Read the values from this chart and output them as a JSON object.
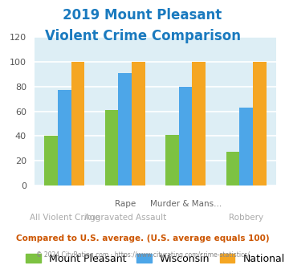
{
  "title_line1": "2019 Mount Pleasant",
  "title_line2": "Violent Crime Comparison",
  "title_color": "#1a7abf",
  "xlabel_top": [
    "",
    "Rape",
    "Murder & Mans...",
    ""
  ],
  "xlabel_bottom": [
    "All Violent Crime",
    "Aggravated Assault",
    "",
    "Robbery"
  ],
  "groups": [
    "Mount Pleasant",
    "Wisconsin",
    "National"
  ],
  "values": {
    "Mount Pleasant": [
      40,
      61,
      41,
      27
    ],
    "Wisconsin": [
      77,
      91,
      80,
      63
    ],
    "National": [
      100,
      100,
      100,
      100
    ]
  },
  "bar_colors": {
    "Mount Pleasant": "#7dc242",
    "Wisconsin": "#4da6e8",
    "National": "#f5a623"
  },
  "ylim": [
    0,
    120
  ],
  "yticks": [
    0,
    20,
    40,
    60,
    80,
    100,
    120
  ],
  "plot_bg": "#ddeef5",
  "grid_color": "#ffffff",
  "footer_text": "© 2024 CityRating.com - https://www.cityrating.com/crime-statistics/",
  "compare_text": "Compared to U.S. average. (U.S. average equals 100)",
  "compare_color": "#cc5500",
  "footer_color": "#888888",
  "legend_fontsize": 9,
  "title_fontsize": 12
}
